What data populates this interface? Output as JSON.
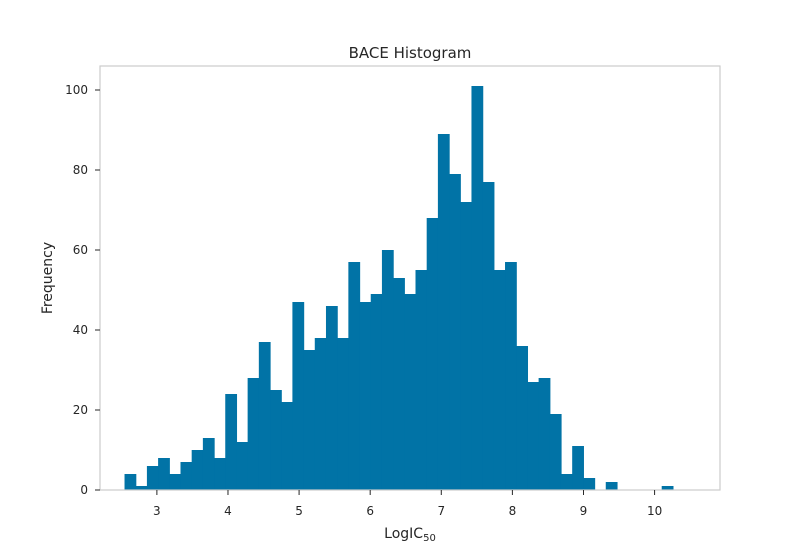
{
  "chart_data": {
    "type": "bar",
    "title": "BACE Histogram",
    "xlabel": "LogIC",
    "xlabel_subscript": "50",
    "ylabel": "Frequency",
    "xlim": [
      2.2,
      10.92
    ],
    "ylim": [
      0,
      106
    ],
    "bin_start": 2.545,
    "bin_width": 0.1574,
    "xticks": [
      3,
      4,
      5,
      6,
      7,
      8,
      9,
      10
    ],
    "yticks": [
      0,
      20,
      40,
      60,
      80,
      100
    ],
    "grid": false,
    "legend": "none",
    "color": "#0173a6",
    "values": [
      4,
      1,
      6,
      8,
      4,
      7,
      10,
      13,
      8,
      24,
      12,
      28,
      37,
      25,
      22,
      47,
      35,
      38,
      46,
      38,
      57,
      47,
      49,
      60,
      53,
      49,
      55,
      68,
      89,
      79,
      72,
      101,
      77,
      55,
      57,
      36,
      27,
      28,
      19,
      4,
      11,
      3,
      0,
      2,
      0,
      0,
      0,
      0,
      1
    ]
  }
}
